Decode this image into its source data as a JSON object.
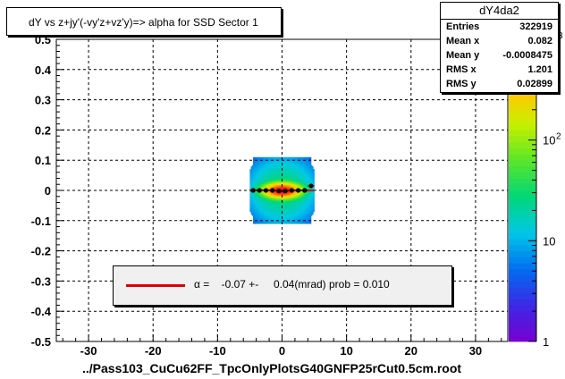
{
  "chart_data": {
    "type": "heatmap",
    "title": "dY vs  z+jy'(-vy'z+vz'y)=> alpha for SSD Sector 1",
    "xlabel": "../Pass103_CuCu62FF_TpcOnlyPlotsG40GNFP25rCut0.5cm.root",
    "ylabel": "",
    "xlim": [
      -35,
      35
    ],
    "ylim": [
      -0.5,
      0.5
    ],
    "x_ticks": [
      -30,
      -20,
      -10,
      0,
      10,
      20,
      30
    ],
    "y_ticks": [
      -0.5,
      -0.4,
      -0.3,
      -0.2,
      -0.1,
      0,
      0.1,
      0.2,
      0.3,
      0.4,
      0.5
    ],
    "x_tick_labels": [
      "-30",
      "-20",
      "-10",
      "0",
      "10",
      "20",
      "30"
    ],
    "y_tick_labels": [
      "-0.5",
      "-0.4",
      "-0.3",
      "-0.2",
      "-0.1",
      "0",
      "0.1",
      "0.2",
      "0.3",
      "0.4",
      "0.5"
    ],
    "grid": true,
    "z_scale": "log",
    "z_range": [
      1,
      1000
    ],
    "z_tick_labels": [
      {
        "value": 1,
        "label": "1"
      },
      {
        "value": 10,
        "label": "10"
      },
      {
        "value": 100,
        "label": "10",
        "sup": "2"
      },
      {
        "value": 1000,
        "label": "",
        "sup": "3"
      }
    ],
    "density": {
      "x_range": [
        -5,
        5
      ],
      "y_range": [
        -0.11,
        0.11
      ],
      "peak": 1000,
      "core_x_width": 1.4,
      "core_y_width": 0.012
    },
    "profile": {
      "x": [
        -4.5,
        -3.5,
        -2.5,
        -1.5,
        -0.5,
        0.5,
        1.5,
        2.5,
        3.5,
        4.5
      ],
      "y": [
        0.0,
        0.0,
        0.0,
        0.0,
        -0.002,
        -0.002,
        0.0,
        0.0,
        0.0,
        0.015
      ]
    },
    "fit_line": {
      "color": "#e00000",
      "x_range": [
        -5,
        5
      ],
      "slope": -7e-05,
      "intercept": 0
    }
  },
  "stats": {
    "name": "dY4da2",
    "rows": [
      {
        "label": "Entries",
        "value": "322919"
      },
      {
        "label": "Mean x",
        "value": "0.082"
      },
      {
        "label": "Mean y",
        "value": "-0.0008475"
      },
      {
        "label": "RMS x",
        "value": "1.201"
      },
      {
        "label": "RMS y",
        "value": "0.02899"
      }
    ]
  },
  "legend": {
    "text": "α =    -0.07 +-     0.04(mrad) prob = 0.010"
  }
}
